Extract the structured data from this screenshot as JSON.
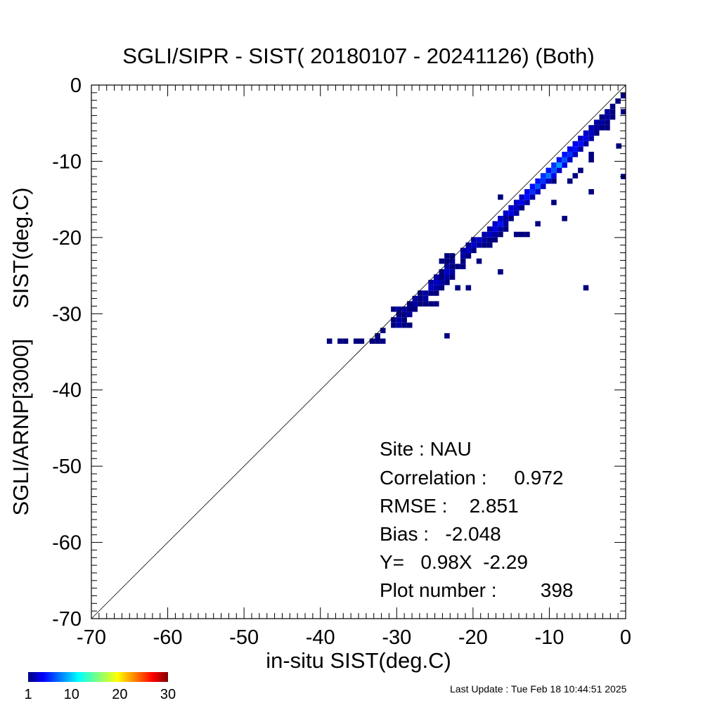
{
  "chart_data": {
    "type": "heatmap",
    "title": "SGLI/SIPR - SIST( 20180107 - 20241126) (Both)",
    "xlabel": "in-situ SIST(deg.C)",
    "ylabel": "SGLI/ARNP[3000]     SIST(deg.C)",
    "xlim": [
      -70,
      0
    ],
    "ylim": [
      -70,
      0
    ],
    "x_ticks": [
      -70,
      -60,
      -50,
      -40,
      -30,
      -20,
      -10,
      0
    ],
    "y_ticks": [
      -70,
      -60,
      -50,
      -40,
      -30,
      -20,
      -10,
      0
    ],
    "x_tick_labels": [
      "-70",
      "-60",
      "-50",
      "-40",
      "-30",
      "-20",
      "-10",
      "0"
    ],
    "y_tick_labels": [
      "-70",
      "-60",
      "-50",
      "-40",
      "-30",
      "-20",
      "-10",
      "0"
    ],
    "minor_tick_step": 1,
    "bin_size": 0.7,
    "reference_line": "y = x",
    "grid": false,
    "colormap": [
      "#00007f",
      "#0000ff",
      "#007fff",
      "#00ffff",
      "#7fff7f",
      "#ffff00",
      "#ff7f00",
      "#ff0000",
      "#7f0000"
    ],
    "colorbar": {
      "min": 1,
      "max": 30,
      "tick_values": [
        1,
        10,
        20,
        30
      ],
      "tick_labels": [
        "1",
        "10",
        "20",
        "30"
      ]
    },
    "stats": {
      "site": "Site : NAU",
      "correlation": "Correlation :     0.972",
      "rmse": "RMSE :    2.851",
      "bias": "Bias :   -2.048",
      "regression": "Y=   0.98X  -2.29",
      "plot_number": "Plot number :        398"
    },
    "cells": [
      [
        -38.8,
        -33.6,
        1
      ],
      [
        -37.4,
        -33.6,
        1
      ],
      [
        -36.7,
        -33.6,
        1
      ],
      [
        -35.3,
        -33.6,
        1
      ],
      [
        -34.6,
        -33.6,
        1
      ],
      [
        -33.2,
        -33.6,
        1
      ],
      [
        -32.5,
        -33.6,
        1
      ],
      [
        -31.8,
        -33.6,
        1
      ],
      [
        -32.5,
        -32.9,
        1
      ],
      [
        -31.8,
        -32.2,
        1
      ],
      [
        -30.4,
        -31.5,
        1
      ],
      [
        -29.7,
        -31.5,
        2
      ],
      [
        -29.0,
        -31.5,
        1
      ],
      [
        -28.3,
        -31.5,
        1
      ],
      [
        -30.4,
        -30.8,
        1
      ],
      [
        -29.7,
        -30.8,
        2
      ],
      [
        -29.0,
        -30.8,
        1
      ],
      [
        -29.7,
        -30.1,
        1
      ],
      [
        -29.0,
        -30.1,
        1
      ],
      [
        -28.3,
        -30.1,
        2
      ],
      [
        -30.4,
        -29.4,
        1
      ],
      [
        -29.7,
        -29.4,
        2
      ],
      [
        -29.0,
        -29.4,
        2
      ],
      [
        -28.3,
        -29.4,
        1
      ],
      [
        -27.6,
        -29.4,
        1
      ],
      [
        -28.3,
        -28.7,
        1
      ],
      [
        -27.6,
        -28.7,
        2
      ],
      [
        -26.9,
        -28.7,
        1
      ],
      [
        -26.2,
        -28.7,
        1
      ],
      [
        -25.5,
        -28.7,
        1
      ],
      [
        -24.8,
        -28.7,
        1
      ],
      [
        -27.6,
        -28.0,
        2
      ],
      [
        -26.9,
        -28.0,
        1
      ],
      [
        -26.2,
        -28.0,
        2
      ],
      [
        -26.9,
        -27.3,
        1
      ],
      [
        -26.2,
        -27.3,
        2
      ],
      [
        -25.5,
        -27.3,
        1
      ],
      [
        -24.8,
        -27.3,
        1
      ],
      [
        -25.5,
        -26.6,
        3
      ],
      [
        -24.8,
        -26.6,
        2
      ],
      [
        -24.1,
        -26.6,
        1
      ],
      [
        -25.5,
        -25.9,
        2
      ],
      [
        -24.8,
        -25.9,
        3
      ],
      [
        -24.1,
        -25.9,
        2
      ],
      [
        -23.4,
        -25.9,
        1
      ],
      [
        -24.8,
        -25.2,
        2
      ],
      [
        -24.1,
        -25.2,
        1
      ],
      [
        -23.4,
        -25.2,
        2
      ],
      [
        -22.7,
        -25.2,
        1
      ],
      [
        -24.1,
        -24.5,
        1
      ],
      [
        -23.4,
        -24.5,
        3
      ],
      [
        -22.7,
        -24.5,
        2
      ],
      [
        -23.4,
        -23.8,
        2
      ],
      [
        -22.7,
        -23.8,
        1
      ],
      [
        -22.0,
        -23.8,
        1
      ],
      [
        -21.3,
        -23.8,
        1
      ],
      [
        -23.4,
        -23.1,
        1
      ],
      [
        -22.7,
        -23.1,
        2
      ],
      [
        -21.3,
        -23.1,
        1
      ],
      [
        -24.1,
        -23.1,
        1
      ],
      [
        -23.4,
        -22.4,
        1
      ],
      [
        -22.7,
        -22.4,
        1
      ],
      [
        -21.3,
        -22.4,
        2
      ],
      [
        -20.6,
        -22.4,
        1
      ],
      [
        -21.3,
        -21.7,
        2
      ],
      [
        -20.6,
        -21.7,
        3
      ],
      [
        -19.9,
        -21.7,
        1
      ],
      [
        -20.6,
        -21.0,
        2
      ],
      [
        -19.9,
        -21.0,
        3
      ],
      [
        -19.2,
        -21.0,
        2
      ],
      [
        -18.5,
        -21.0,
        1
      ],
      [
        -17.8,
        -21.0,
        1
      ],
      [
        -19.9,
        -20.3,
        2
      ],
      [
        -19.2,
        -20.3,
        3
      ],
      [
        -18.5,
        -20.3,
        2
      ],
      [
        -17.8,
        -20.3,
        1
      ],
      [
        -17.1,
        -20.3,
        1
      ],
      [
        -18.5,
        -19.6,
        2
      ],
      [
        -17.8,
        -19.6,
        3
      ],
      [
        -17.1,
        -19.6,
        2
      ],
      [
        -16.4,
        -19.6,
        1
      ],
      [
        -17.8,
        -18.9,
        2
      ],
      [
        -17.1,
        -18.9,
        4
      ],
      [
        -16.4,
        -18.9,
        2
      ],
      [
        -15.7,
        -18.9,
        1
      ],
      [
        -17.1,
        -18.2,
        3
      ],
      [
        -16.4,
        -18.2,
        5
      ],
      [
        -15.7,
        -18.2,
        2
      ],
      [
        -16.4,
        -17.5,
        3
      ],
      [
        -15.7,
        -17.5,
        2
      ],
      [
        -15.0,
        -17.5,
        1
      ],
      [
        -15.7,
        -16.8,
        3
      ],
      [
        -15.0,
        -16.8,
        4
      ],
      [
        -14.3,
        -16.8,
        2
      ],
      [
        -15.0,
        -16.1,
        3
      ],
      [
        -14.3,
        -16.1,
        3
      ],
      [
        -13.6,
        -16.1,
        1
      ],
      [
        -14.3,
        -15.4,
        3
      ],
      [
        -13.6,
        -15.4,
        4
      ],
      [
        -12.9,
        -15.4,
        2
      ],
      [
        -13.6,
        -14.7,
        3
      ],
      [
        -12.9,
        -14.7,
        5
      ],
      [
        -12.2,
        -14.7,
        2
      ],
      [
        -12.9,
        -14.0,
        4
      ],
      [
        -12.2,
        -14.0,
        6
      ],
      [
        -11.5,
        -14.0,
        3
      ],
      [
        -12.2,
        -13.3,
        5
      ],
      [
        -11.5,
        -13.3,
        7
      ],
      [
        -10.8,
        -13.3,
        3
      ],
      [
        -11.5,
        -12.6,
        5
      ],
      [
        -10.8,
        -12.6,
        6
      ],
      [
        -10.1,
        -12.6,
        3
      ],
      [
        -10.8,
        -11.9,
        6
      ],
      [
        -10.1,
        -11.9,
        8
      ],
      [
        -9.4,
        -11.9,
        4
      ],
      [
        -10.1,
        -11.2,
        5
      ],
      [
        -9.4,
        -11.2,
        7
      ],
      [
        -8.7,
        -11.2,
        3
      ],
      [
        -9.4,
        -10.5,
        6
      ],
      [
        -8.7,
        -10.5,
        9
      ],
      [
        -8.0,
        -10.5,
        4
      ],
      [
        -8.7,
        -9.8,
        5
      ],
      [
        -8.0,
        -9.8,
        7
      ],
      [
        -7.3,
        -9.8,
        3
      ],
      [
        -8.0,
        -9.1,
        5
      ],
      [
        -7.3,
        -9.1,
        6
      ],
      [
        -6.6,
        -9.1,
        3
      ],
      [
        -7.3,
        -8.4,
        4
      ],
      [
        -6.6,
        -8.4,
        5
      ],
      [
        -5.9,
        -8.4,
        2
      ],
      [
        -6.6,
        -7.7,
        4
      ],
      [
        -5.9,
        -7.7,
        5
      ],
      [
        -5.2,
        -7.7,
        2
      ],
      [
        -5.9,
        -7.0,
        3
      ],
      [
        -5.2,
        -7.0,
        4
      ],
      [
        -4.5,
        -7.0,
        2
      ],
      [
        -5.2,
        -6.3,
        3
      ],
      [
        -4.5,
        -6.3,
        3
      ],
      [
        -3.8,
        -6.3,
        1
      ],
      [
        -4.5,
        -5.6,
        2
      ],
      [
        -3.8,
        -5.6,
        2
      ],
      [
        -3.1,
        -5.6,
        1
      ],
      [
        -3.8,
        -4.9,
        2
      ],
      [
        -3.1,
        -4.9,
        2
      ],
      [
        -2.4,
        -4.9,
        1
      ],
      [
        -3.1,
        -4.2,
        1
      ],
      [
        -2.4,
        -4.2,
        2
      ],
      [
        -1.7,
        -4.2,
        1
      ],
      [
        -2.4,
        -3.5,
        2
      ],
      [
        -1.7,
        -3.5,
        1
      ],
      [
        -0.3,
        -3.5,
        1
      ],
      [
        -1.7,
        -2.8,
        1
      ],
      [
        -1.0,
        -2.1,
        1
      ],
      [
        -0.3,
        -1.4,
        2
      ],
      [
        -0.3,
        -1.4,
        1
      ],
      [
        -7.3,
        -12.6,
        1
      ],
      [
        -6.6,
        -11.9,
        1
      ],
      [
        -5.9,
        -11.2,
        1
      ],
      [
        -4.5,
        -9.1,
        1
      ],
      [
        -4.5,
        -9.8,
        1
      ],
      [
        -2.4,
        -5.6,
        1
      ],
      [
        -22.0,
        -26.6,
        1
      ],
      [
        -20.6,
        -26.6,
        1
      ],
      [
        -19.2,
        -23.1,
        1
      ],
      [
        -16.4,
        -24.5,
        1
      ],
      [
        -14.3,
        -19.6,
        1
      ],
      [
        -13.6,
        -19.6,
        1
      ],
      [
        -12.9,
        -19.6,
        1
      ],
      [
        -11.5,
        -18.2,
        1
      ],
      [
        -9.4,
        -12.6,
        1
      ],
      [
        -8.0,
        -17.5,
        1
      ],
      [
        -5.2,
        -26.6,
        1
      ],
      [
        -4.5,
        -14.0,
        1
      ],
      [
        -0.3,
        -12.0,
        1
      ],
      [
        -0.9,
        -8.0,
        1
      ],
      [
        -9.4,
        -15.4,
        1
      ],
      [
        -16.4,
        -14.7,
        1
      ],
      [
        -23.4,
        -32.9,
        1
      ],
      [
        -20.6,
        -22.4,
        1
      ]
    ]
  },
  "footer": {
    "last_update": "Last Update : Tue Feb 18 10:44:51 2025"
  }
}
